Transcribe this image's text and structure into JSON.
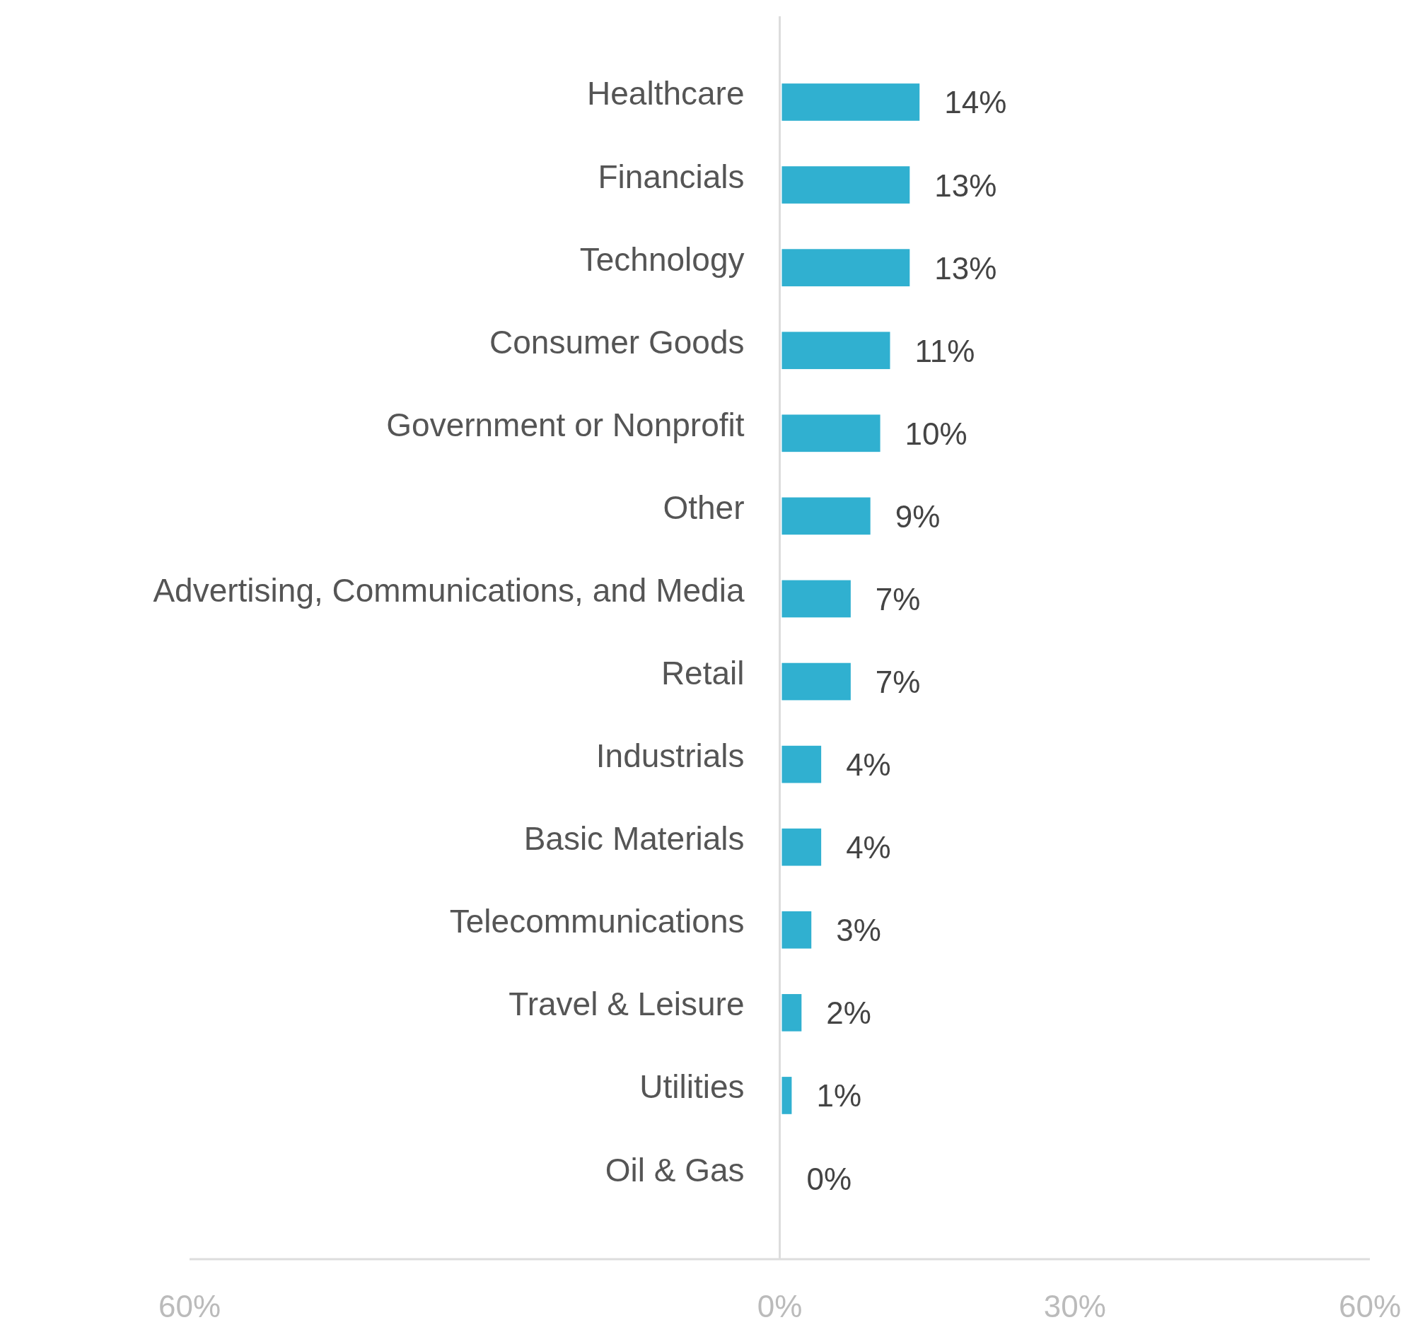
{
  "chart_data": {
    "type": "bar",
    "orientation": "horizontal",
    "categories": [
      "Healthcare",
      "Financials",
      "Technology",
      "Consumer Goods",
      "Government or Nonprofit",
      "Other",
      "Advertising, Communications, and Media",
      "Retail",
      "Industrials",
      "Basic Materials",
      "Telecommunications",
      "Travel & Leisure",
      "Utilities",
      "Oil & Gas"
    ],
    "series": [
      {
        "color": "#30b0d0",
        "values": [
          14,
          13,
          13,
          11,
          10,
          9,
          7,
          7,
          4,
          4,
          3,
          2,
          1,
          0
        ],
        "value_labels": [
          "14%",
          "13%",
          "13%",
          "11%",
          "10%",
          "9%",
          "7%",
          "7%",
          "4%",
          "4%",
          "3%",
          "2%",
          "1%",
          "0%"
        ]
      }
    ],
    "xlim": [
      -60,
      60
    ],
    "xticks": [
      {
        "value": -60,
        "label": "60%"
      },
      {
        "value": 0,
        "label": "0%"
      },
      {
        "value": 30,
        "label": "30%"
      },
      {
        "value": 60,
        "label": "60%"
      }
    ],
    "grid": false
  }
}
